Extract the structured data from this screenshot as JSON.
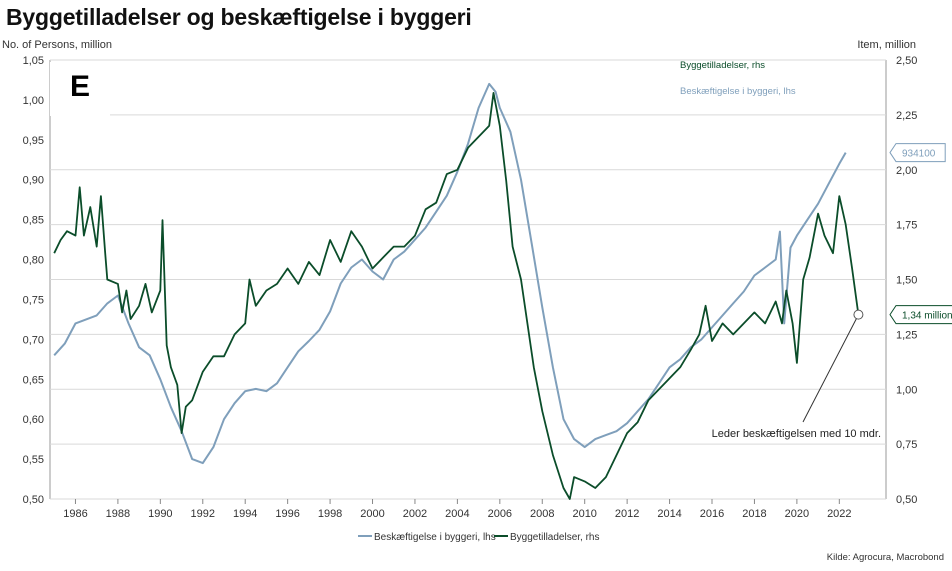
{
  "title": "Byggetilladelser og beskæftigelse i byggeri",
  "source": "Kilde: Agrocura, Macrobond",
  "panel_label": "E",
  "colors": {
    "employment": "#7f9fbb",
    "permits": "#0b4d2a",
    "grid": "#d9d9d9",
    "axis": "#666666"
  },
  "chart_data": {
    "type": "line",
    "title": "Byggetilladelser og beskæftigelse i byggeri",
    "ylabel_left": "No. of Persons, million",
    "ylabel_right": "Item, million",
    "ylim_left": [
      0.5,
      1.05
    ],
    "ylim_right": [
      0.5,
      2.5
    ],
    "xlim": [
      1984.8,
      2024.2
    ],
    "x_ticks": [
      1986,
      1988,
      1990,
      1992,
      1994,
      1996,
      1998,
      2000,
      2002,
      2004,
      2006,
      2008,
      2010,
      2012,
      2014,
      2016,
      2018,
      2020,
      2022
    ],
    "y_ticks_left": [
      "0,50",
      "0,55",
      "0,60",
      "0,65",
      "0,70",
      "0,75",
      "0,80",
      "0,85",
      "0,90",
      "0,95",
      "1,00",
      "1,05"
    ],
    "y_ticks_right": [
      "0,50",
      "0,75",
      "1,00",
      "1,25",
      "1,50",
      "1,75",
      "2,00",
      "2,25",
      "2,50"
    ],
    "grid": true,
    "legend_inside": [
      "Byggetilladelser, rhs",
      "Beskæftigelse i byggeri, lhs"
    ],
    "legend_bottom": [
      "Beskæftigelse i byggeri, lhs",
      "Byggetilladelser, rhs"
    ],
    "end_labels": {
      "employment": "934100",
      "permits": "1,34 million"
    },
    "annotation": "Leder beskæftigelsen med 10 mdr.",
    "series": [
      {
        "name": "Beskæftigelse i byggeri, lhs",
        "axis": "left",
        "x": [
          1985.0,
          1985.5,
          1986.0,
          1986.5,
          1987.0,
          1987.5,
          1988.0,
          1988.5,
          1989.0,
          1989.5,
          1990.0,
          1990.5,
          1991.0,
          1991.5,
          1992.0,
          1992.5,
          1993.0,
          1993.5,
          1994.0,
          1994.5,
          1995.0,
          1995.5,
          1996.0,
          1996.5,
          1997.0,
          1997.5,
          1998.0,
          1998.5,
          1999.0,
          1999.5,
          2000.0,
          2000.5,
          2001.0,
          2001.5,
          2002.0,
          2002.5,
          2003.0,
          2003.5,
          2004.0,
          2004.5,
          2005.0,
          2005.5,
          2005.8,
          2006.0,
          2006.5,
          2007.0,
          2007.5,
          2008.0,
          2008.5,
          2009.0,
          2009.5,
          2010.0,
          2010.5,
          2011.0,
          2011.5,
          2012.0,
          2012.5,
          2013.0,
          2013.5,
          2014.0,
          2014.5,
          2015.0,
          2015.5,
          2016.0,
          2016.5,
          2017.0,
          2017.5,
          2018.0,
          2018.5,
          2019.0,
          2019.2,
          2019.4,
          2019.7,
          2020.0,
          2020.5,
          2021.0,
          2021.5,
          2022.0,
          2022.3
        ],
        "values": [
          0.68,
          0.695,
          0.72,
          0.725,
          0.73,
          0.745,
          0.755,
          0.72,
          0.69,
          0.68,
          0.65,
          0.615,
          0.585,
          0.55,
          0.545,
          0.565,
          0.6,
          0.62,
          0.635,
          0.638,
          0.635,
          0.645,
          0.665,
          0.685,
          0.698,
          0.712,
          0.735,
          0.77,
          0.79,
          0.8,
          0.785,
          0.775,
          0.8,
          0.81,
          0.825,
          0.84,
          0.86,
          0.88,
          0.91,
          0.945,
          0.99,
          1.02,
          1.01,
          0.99,
          0.96,
          0.9,
          0.82,
          0.74,
          0.665,
          0.6,
          0.575,
          0.565,
          0.575,
          0.58,
          0.585,
          0.595,
          0.61,
          0.625,
          0.645,
          0.665,
          0.675,
          0.69,
          0.7,
          0.715,
          0.73,
          0.745,
          0.76,
          0.78,
          0.79,
          0.8,
          0.835,
          0.72,
          0.815,
          0.83,
          0.85,
          0.87,
          0.895,
          0.92,
          0.934
        ]
      },
      {
        "name": "Byggetilladelser, rhs",
        "axis": "right",
        "x": [
          1985.0,
          1985.3,
          1985.6,
          1986.0,
          1986.2,
          1986.4,
          1986.7,
          1987.0,
          1987.2,
          1987.4,
          1987.5,
          1988.0,
          1988.2,
          1988.4,
          1988.6,
          1989.0,
          1989.3,
          1989.6,
          1990.0,
          1990.1,
          1990.3,
          1990.5,
          1990.8,
          1991.0,
          1991.2,
          1991.5,
          1992.0,
          1992.5,
          1993.0,
          1993.5,
          1994.0,
          1994.2,
          1994.5,
          1995.0,
          1995.5,
          1996.0,
          1996.5,
          1997.0,
          1997.5,
          1998.0,
          1998.5,
          1999.0,
          1999.5,
          2000.0,
          2000.5,
          2001.0,
          2001.5,
          2002.0,
          2002.5,
          2003.0,
          2003.5,
          2004.0,
          2004.5,
          2005.0,
          2005.5,
          2005.7,
          2006.0,
          2006.3,
          2006.6,
          2007.0,
          2007.3,
          2007.6,
          2008.0,
          2008.5,
          2009.0,
          2009.3,
          2009.5,
          2010.0,
          2010.5,
          2011.0,
          2011.5,
          2012.0,
          2012.5,
          2013.0,
          2013.5,
          2014.0,
          2014.5,
          2015.0,
          2015.4,
          2015.7,
          2016.0,
          2016.5,
          2017.0,
          2017.5,
          2018.0,
          2018.5,
          2019.0,
          2019.3,
          2019.5,
          2019.8,
          2020.0,
          2020.3,
          2020.6,
          2021.0,
          2021.3,
          2021.7,
          2022.0,
          2022.3,
          2022.6,
          2022.9
        ],
        "values": [
          1.62,
          1.68,
          1.72,
          1.7,
          1.92,
          1.7,
          1.83,
          1.65,
          1.88,
          1.62,
          1.5,
          1.48,
          1.35,
          1.45,
          1.32,
          1.38,
          1.48,
          1.35,
          1.45,
          1.77,
          1.2,
          1.1,
          1.02,
          0.8,
          0.92,
          0.95,
          1.08,
          1.15,
          1.15,
          1.25,
          1.3,
          1.5,
          1.38,
          1.45,
          1.48,
          1.55,
          1.48,
          1.58,
          1.52,
          1.68,
          1.58,
          1.72,
          1.65,
          1.55,
          1.6,
          1.65,
          1.65,
          1.7,
          1.82,
          1.85,
          1.98,
          2.0,
          2.1,
          2.15,
          2.2,
          2.35,
          2.2,
          1.95,
          1.65,
          1.5,
          1.3,
          1.1,
          0.9,
          0.7,
          0.55,
          0.5,
          0.6,
          0.58,
          0.55,
          0.6,
          0.7,
          0.8,
          0.85,
          0.95,
          1.0,
          1.05,
          1.1,
          1.18,
          1.25,
          1.38,
          1.22,
          1.3,
          1.25,
          1.3,
          1.35,
          1.3,
          1.4,
          1.3,
          1.45,
          1.3,
          1.12,
          1.5,
          1.6,
          1.8,
          1.7,
          1.62,
          1.88,
          1.75,
          1.55,
          1.34
        ]
      }
    ]
  }
}
